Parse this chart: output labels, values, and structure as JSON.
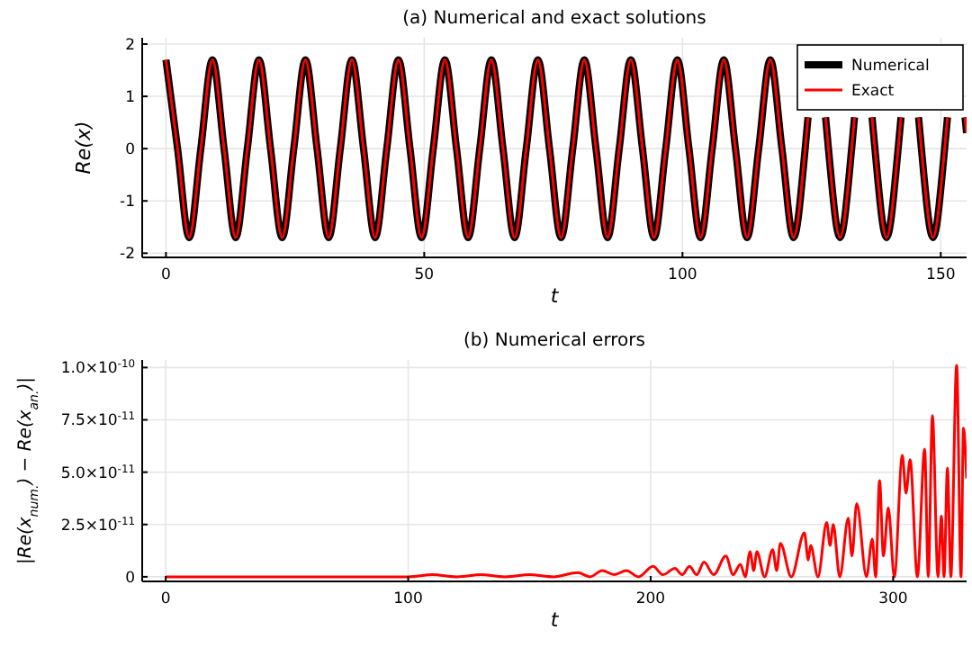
{
  "chart_data": [
    {
      "type": "line",
      "title": "(a) Numerical and exact solutions",
      "xlabel": "t",
      "ylabel": "Re(x)",
      "xlim": [
        -4.6,
        155
      ],
      "ylim": [
        -2.08,
        2.12
      ],
      "xticks": [
        0,
        50,
        100,
        150
      ],
      "yticks": [
        -2,
        -1,
        0,
        1,
        2
      ],
      "grid": true,
      "legend": "top right",
      "x": [
        0,
        2.25,
        4.5,
        6.75,
        9,
        11.25,
        13.5,
        15.75,
        18,
        20.25,
        22.5,
        24.75,
        27,
        29.25,
        31.5,
        33.75,
        36,
        38.25,
        40.5,
        42.75,
        45,
        47.25,
        49.5,
        51.75,
        54,
        56.25,
        58.5,
        60.75,
        63,
        65.25,
        67.5,
        69.75,
        72,
        74.25,
        76.5,
        78.75,
        81,
        83.25,
        85.5,
        87.75,
        90,
        92.25,
        94.5,
        96.75,
        99,
        101.25,
        103.5,
        105.75,
        108,
        110.25,
        112.5,
        114.75,
        117,
        119.25,
        121.5,
        123.75,
        124.3,
        126,
        127.7,
        128.25,
        130.5,
        132.75,
        133.3,
        135,
        136.7,
        137.25,
        139.5,
        141.75,
        142.3,
        144,
        145.7,
        146.25,
        148.5,
        150.75,
        151.3,
        153,
        154.7,
        155
      ],
      "series": [
        {
          "name": "Numerical",
          "color": "#000000",
          "values": [
            1.7,
            0,
            -1.7,
            0,
            1.7,
            0,
            -1.7,
            0,
            1.7,
            0,
            -1.7,
            0,
            1.7,
            0,
            -1.7,
            0,
            1.7,
            0,
            -1.7,
            0,
            1.7,
            0,
            -1.7,
            0,
            1.7,
            0,
            -1.7,
            0,
            1.7,
            0,
            -1.7,
            0,
            1.7,
            0,
            -1.7,
            0,
            1.7,
            0,
            -1.7,
            0,
            1.7,
            0,
            -1.7,
            0,
            1.7,
            0,
            -1.7,
            0,
            1.7,
            0,
            -1.7,
            0,
            1.7,
            0,
            -1.7,
            0,
            0.6,
            null,
            0.6,
            0,
            -1.7,
            0,
            0.6,
            null,
            0.6,
            0,
            -1.7,
            0,
            0.6,
            null,
            0.6,
            0,
            -1.7,
            0,
            0.6,
            null,
            0.6,
            0.3
          ]
        },
        {
          "name": "Exact",
          "color": "#ff0000",
          "values": [
            1.7,
            0,
            -1.7,
            0,
            1.7,
            0,
            -1.7,
            0,
            1.7,
            0,
            -1.7,
            0,
            1.7,
            0,
            -1.7,
            0,
            1.7,
            0,
            -1.7,
            0,
            1.7,
            0,
            -1.7,
            0,
            1.7,
            0,
            -1.7,
            0,
            1.7,
            0,
            -1.7,
            0,
            1.7,
            0,
            -1.7,
            0,
            1.7,
            0,
            -1.7,
            0,
            1.7,
            0,
            -1.7,
            0,
            1.7,
            0,
            -1.7,
            0,
            1.7,
            0,
            -1.7,
            0,
            1.7,
            0,
            -1.7,
            0,
            0.6,
            null,
            0.6,
            0,
            -1.7,
            0,
            0.6,
            null,
            0.6,
            0,
            -1.7,
            0,
            0.6,
            null,
            0.6,
            0,
            -1.7,
            0,
            0.6,
            null,
            0.6,
            0.3
          ]
        }
      ]
    },
    {
      "type": "line",
      "title": "(b) Numerical errors",
      "xlabel": "t",
      "ylabel": "|Re(x$_{num.}$) − Re(x$_{an.}$)|",
      "xlim": [
        -9.7,
        330.3
      ],
      "ylim": [
        -2.2e-12,
        1.036e-10
      ],
      "xticks": [
        0,
        100,
        200,
        300
      ],
      "yticks": [
        {
          "value": 0,
          "label": "0"
        },
        {
          "value": 2.5e-11,
          "label": "2.5×10$^{-11}$"
        },
        {
          "value": 5e-11,
          "label": "5.0×10$^{-11}$"
        },
        {
          "value": 7.5e-11,
          "label": "7.5×10$^{-11}$"
        },
        {
          "value": 1e-10,
          "label": "1.0×10$^{-10}$"
        }
      ],
      "grid": true,
      "x": [
        0,
        50,
        100,
        110,
        120,
        130,
        140,
        150,
        160,
        170,
        175,
        180,
        185,
        190,
        195,
        201,
        205,
        210,
        213,
        216,
        219,
        222,
        226,
        231,
        234,
        237,
        239,
        241,
        242.5,
        243.8,
        247,
        250.3,
        252,
        253.5,
        258,
        263.4,
        265,
        266,
        269,
        272.6,
        274,
        275.3,
        278,
        281.5,
        283,
        285,
        289,
        291.4,
        292.8,
        294.4,
        296,
        298,
        300.5,
        303.8,
        305.3,
        307,
        310,
        313,
        314.5,
        316.2,
        318.5,
        319.9,
        321,
        322.4,
        323.8,
        326.2,
        328,
        329,
        330.3
      ],
      "series": [
        {
          "color": "#ff0000",
          "values": [
            0,
            0,
            0,
            1e-12,
            0,
            1e-12,
            0,
            1e-12,
            0,
            2e-12,
            0,
            3e-12,
            1e-12,
            3e-12,
            0,
            5e-12,
            1e-12,
            4e-12,
            1e-12,
            5e-12,
            1e-12,
            7e-12,
            1e-12,
            1e-11,
            1e-12,
            6e-12,
            0,
            1.2e-11,
            3e-12,
            1.2e-11,
            0,
            1.3e-11,
            3e-12,
            1.6e-11,
            0,
            2.1e-11,
            8e-12,
            1.5e-11,
            0,
            2.6e-11,
            1.5e-11,
            2.5e-11,
            0,
            2.8e-11,
            1e-11,
            3.5e-11,
            0,
            1.8e-11,
            0,
            4.6e-11,
            1e-11,
            3.3e-11,
            0,
            5.8e-11,
            4e-11,
            5.6e-11,
            0,
            6.1e-11,
            0,
            7.7e-11,
            0,
            2.9e-11,
            0,
            5.2e-11,
            0,
            1.01e-10,
            0,
            7.1e-11,
            4.7e-11
          ]
        }
      ]
    }
  ]
}
